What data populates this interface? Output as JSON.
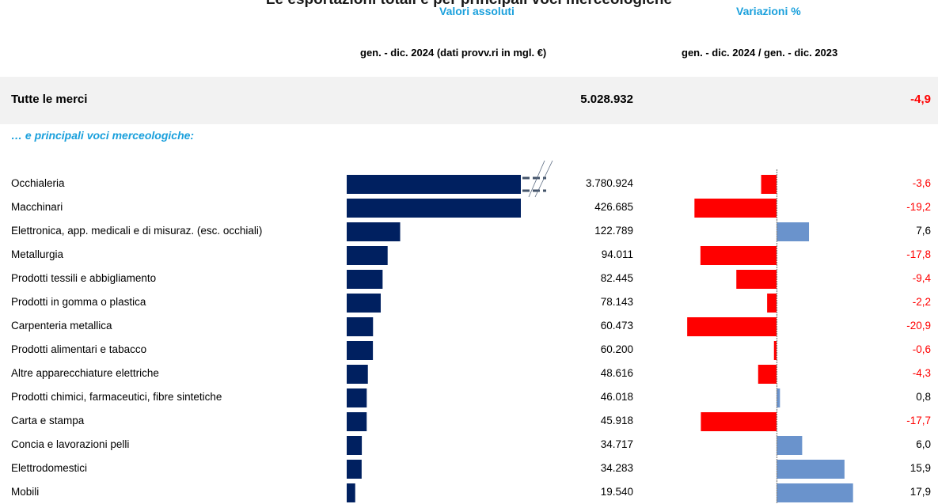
{
  "header": {
    "title": "Le esportazioni totali e per principali voci merceologiche",
    "group_abs": "Valori assoluti",
    "group_var": "Variazioni %",
    "period_abs": "gen. - dic. 2024 (dati provv.ri in mgl. €)",
    "period_var": "gen. - dic. 2024 / gen. - dic. 2023"
  },
  "total": {
    "label": "Tutte le merci",
    "value": "5.028.932",
    "pct": "-4,9"
  },
  "subtitle": "… e principali voci merceologiche:",
  "colors": {
    "abs_bar": "#002060",
    "neg_bar": "#ff0000",
    "pos_bar": "#6a93cc",
    "neg_text": "#ff0000",
    "pos_text": "#000000",
    "accent": "#1aa0dc"
  },
  "chart_data": [
    {
      "type": "bar",
      "orientation": "horizontal",
      "title": "Valori assoluti",
      "categories": [
        "Occhialeria",
        "Macchinari",
        "Elettronica, app. medicali e di misuraz. (esc. occhiali)",
        "Metallurgia",
        "Prodotti tessili e abbigliamento",
        "Prodotti in gomma o plastica",
        "Carpenteria metallica",
        "Prodotti alimentari e tabacco",
        "Altre apparecchiature elettriche",
        "Prodotti chimici, farmaceutici, fibre sintetiche",
        "Carta e stampa",
        "Concia e lavorazioni pelli",
        "Elettrodomestici",
        "Mobili"
      ],
      "values": [
        3780924,
        426685,
        122789,
        94011,
        82445,
        78143,
        60473,
        60200,
        48616,
        46018,
        45918,
        34717,
        34283,
        19540
      ],
      "value_labels": [
        "3.780.924",
        "426.685",
        "122.789",
        "94.011",
        "82.445",
        "78.143",
        "60.473",
        "60.200",
        "48.616",
        "46.018",
        "45.918",
        "34.717",
        "34.283",
        "19.540"
      ],
      "axis_break": true
    },
    {
      "type": "bar",
      "orientation": "horizontal",
      "title": "Variazioni %",
      "categories": [
        "Occhialeria",
        "Macchinari",
        "Elettronica, app. medicali e di misuraz. (esc. occhiali)",
        "Metallurgia",
        "Prodotti tessili e abbigliamento",
        "Prodotti in gomma o plastica",
        "Carpenteria metallica",
        "Prodotti alimentari e tabacco",
        "Altre apparecchiature elettriche",
        "Prodotti chimici, farmaceutici, fibre sintetiche",
        "Carta e stampa",
        "Concia e lavorazioni pelli",
        "Elettrodomestici",
        "Mobili"
      ],
      "values": [
        -3.6,
        -19.2,
        7.6,
        -17.8,
        -9.4,
        -2.2,
        -20.9,
        -0.6,
        -4.3,
        0.8,
        -17.7,
        6.0,
        15.9,
        17.9
      ],
      "value_labels": [
        "-3,6",
        "-19,2",
        "7,6",
        "-17,8",
        "-9,4",
        "-2,2",
        "-20,9",
        "-0,6",
        "-4,3",
        "0,8",
        "-17,7",
        "6,0",
        "15,9",
        "17,9"
      ]
    }
  ]
}
